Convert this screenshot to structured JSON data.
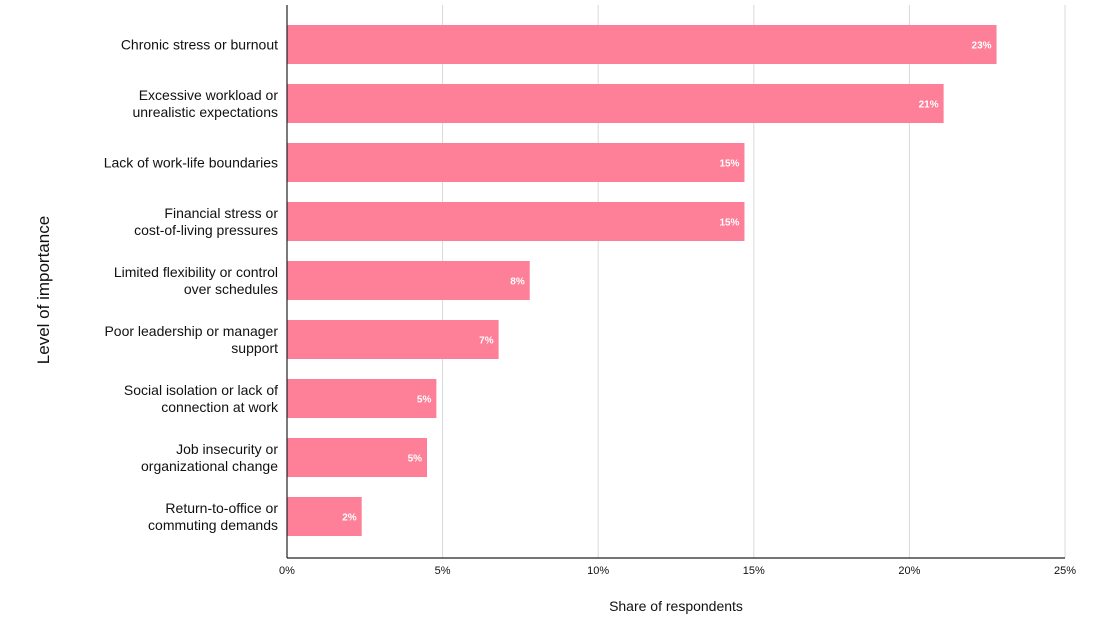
{
  "chart_data": {
    "type": "bar",
    "orientation": "horizontal",
    "categories": [
      [
        "Chronic stress or burnout"
      ],
      [
        "Excessive workload or",
        "unrealistic expectations"
      ],
      [
        "Lack of work-life boundaries"
      ],
      [
        "Financial stress or",
        "cost-of-living pressures"
      ],
      [
        "Limited flexibility or control",
        "over schedules"
      ],
      [
        "Poor leadership or manager",
        "support"
      ],
      [
        "Social isolation or lack of",
        "connection at work"
      ],
      [
        "Job insecurity or",
        "organizational change"
      ],
      [
        "Return-to-office or",
        "commuting demands"
      ]
    ],
    "values": [
      22.8,
      21.1,
      14.7,
      14.7,
      7.8,
      6.8,
      4.8,
      4.5,
      2.4
    ],
    "data_labels": [
      "23%",
      "21%",
      "15%",
      "15%",
      "8%",
      "7%",
      "5%",
      "5%",
      "2%"
    ],
    "xlim": [
      0,
      25
    ],
    "x_ticks": [
      0,
      5,
      10,
      15,
      20,
      25
    ],
    "x_tick_labels": [
      "0%",
      "5%",
      "10%",
      "15%",
      "20%",
      "25%"
    ],
    "xlabel": "Share of respondents",
    "ylabel": "Level of importance",
    "grid": "vertical",
    "legend": "none",
    "bar_color": "#fd7f98",
    "grid_color": "#d9d9d9",
    "axis_color": "#222222"
  }
}
